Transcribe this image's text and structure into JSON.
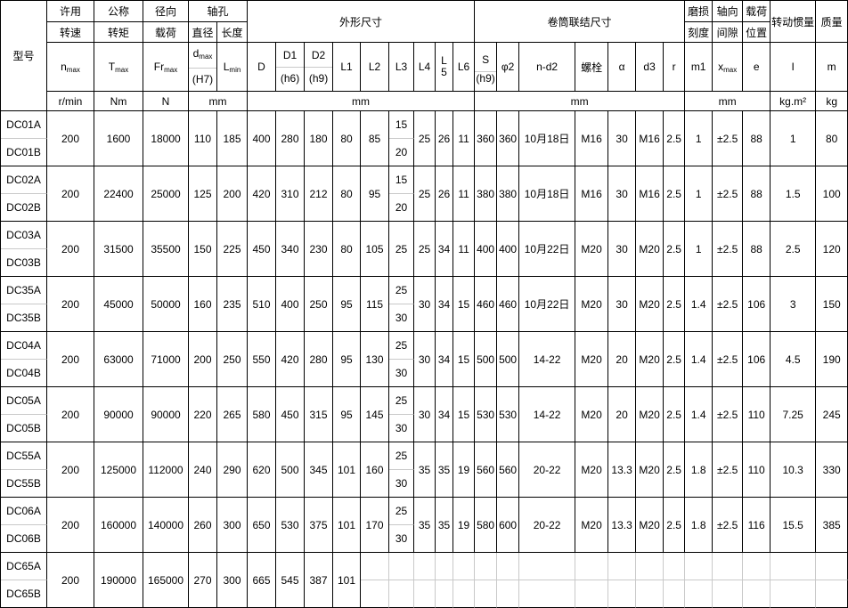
{
  "table": {
    "header": {
      "model": "型号",
      "groups": {
        "allow": [
          "许用",
          "转速"
        ],
        "torque": [
          "公称",
          "转矩"
        ],
        "radial": [
          "径向",
          "载荷"
        ],
        "hole": "轴孔",
        "hole_dia": "直径",
        "hole_len": "长度",
        "outline": "外形尺寸",
        "drum": "卷筒联结尺寸",
        "wear": [
          "磨损",
          "刻度"
        ],
        "axial": [
          "轴向",
          "间隙"
        ],
        "loadpos": [
          "载荷",
          "位置"
        ],
        "inertia": "转动惯量",
        "mass": "质量"
      },
      "symbols": {
        "n": {
          "b": "n",
          "s": "max"
        },
        "T": {
          "b": "T",
          "s": "max"
        },
        "Fr": {
          "b": "Fr",
          "s": "max"
        },
        "d": {
          "b": "d",
          "s": "max",
          "l2": "(H7)"
        },
        "Lmin": {
          "b": "L",
          "s": "min"
        },
        "D": "D",
        "D1": {
          "t": "D1",
          "l2": "(h6)"
        },
        "D2": {
          "t": "D2",
          "l2": "(h9)"
        },
        "L1": "L1",
        "L2": "L2",
        "L3": "L3",
        "L4": "L4",
        "L5": "L5",
        "L6": "L6",
        "S": {
          "t": "S",
          "l2": "(h9)"
        },
        "phi2": "φ2",
        "nd2": "n-d2",
        "bolt": "螺栓",
        "alpha": "α",
        "d3": "d3",
        "r": "r",
        "m1": "m1",
        "xmax": {
          "b": "x",
          "s": "max"
        },
        "e": "e",
        "I": "I",
        "m": "m"
      },
      "units": {
        "speed": "r/min",
        "torque": "Nm",
        "load": "N",
        "hole": "mm",
        "outline": "mm",
        "drum": "mm",
        "gap": "mm",
        "inertia": "kg.m²",
        "mass": "kg"
      }
    },
    "rows": [
      {
        "a": "DC01A",
        "b": "DC01B",
        "n": "200",
        "T": "1600",
        "Fr": "18000",
        "d": "110",
        "Lmin": "185",
        "D": "400",
        "D1": "280",
        "D2": "180",
        "L1": "80",
        "L2": "85",
        "L3a": "15",
        "L3b": "20",
        "L4": "25",
        "L5": "26",
        "L6": "11",
        "S": "360",
        "phi2": "360",
        "nd2": "10月18日",
        "bolt": "M16",
        "alpha": "30",
        "d3": "M16",
        "r": "2.5",
        "m1": "1",
        "xmax": "±2.5",
        "e": "88",
        "I": "1",
        "m": "80"
      },
      {
        "a": "DC02A",
        "b": "DC02B",
        "n": "200",
        "T": "22400",
        "Fr": "25000",
        "d": "125",
        "Lmin": "200",
        "D": "420",
        "D1": "310",
        "D2": "212",
        "L1": "80",
        "L2": "95",
        "L3a": "15",
        "L3b": "20",
        "L4": "25",
        "L5": "26",
        "L6": "11",
        "S": "380",
        "phi2": "380",
        "nd2": "10月18日",
        "bolt": "M16",
        "alpha": "30",
        "d3": "M16",
        "r": "2.5",
        "m1": "1",
        "xmax": "±2.5",
        "e": "88",
        "I": "1.5",
        "m": "100"
      },
      {
        "a": "DC03A",
        "b": "DC03B",
        "n": "200",
        "T": "31500",
        "Fr": "35500",
        "d": "150",
        "Lmin": "225",
        "D": "450",
        "D1": "340",
        "D2": "230",
        "L1": "80",
        "L2": "105",
        "L3": "25",
        "L4": "25",
        "L5": "34",
        "L6": "11",
        "S": "400",
        "phi2": "400",
        "nd2": "10月22日",
        "bolt": "M20",
        "alpha": "30",
        "d3": "M20",
        "r": "2.5",
        "m1": "1",
        "xmax": "±2.5",
        "e": "88",
        "I": "2.5",
        "m": "120"
      },
      {
        "a": "DC35A",
        "b": "DC35B",
        "n": "200",
        "T": "45000",
        "Fr": "50000",
        "d": "160",
        "Lmin": "235",
        "D": "510",
        "D1": "400",
        "D2": "250",
        "L1": "95",
        "L2": "115",
        "L3a": "25",
        "L3b": "30",
        "L4": "30",
        "L5": "34",
        "L6": "15",
        "S": "460",
        "phi2": "460",
        "nd2": "10月22日",
        "bolt": "M20",
        "alpha": "30",
        "d3": "M20",
        "r": "2.5",
        "m1": "1.4",
        "xmax": "±2.5",
        "e": "106",
        "I": "3",
        "m": "150"
      },
      {
        "a": "DC04A",
        "b": "DC04B",
        "n": "200",
        "T": "63000",
        "Fr": "71000",
        "d": "200",
        "Lmin": "250",
        "D": "550",
        "D1": "420",
        "D2": "280",
        "L1": "95",
        "L2": "130",
        "L3a": "25",
        "L3b": "30",
        "L4": "30",
        "L5": "34",
        "L6": "15",
        "S": "500",
        "phi2": "500",
        "nd2": "14-22",
        "bolt": "M20",
        "alpha": "20",
        "d3": "M20",
        "r": "2.5",
        "m1": "1.4",
        "xmax": "±2.5",
        "e": "106",
        "I": "4.5",
        "m": "190"
      },
      {
        "a": "DC05A",
        "b": "DC05B",
        "n": "200",
        "T": "90000",
        "Fr": "90000",
        "d": "220",
        "Lmin": "265",
        "D": "580",
        "D1": "450",
        "D2": "315",
        "L1": "95",
        "L2": "145",
        "L3a": "25",
        "L3b": "30",
        "L4": "30",
        "L5": "34",
        "L6": "15",
        "S": "530",
        "phi2": "530",
        "nd2": "14-22",
        "bolt": "M20",
        "alpha": "20",
        "d3": "M20",
        "r": "2.5",
        "m1": "1.4",
        "xmax": "±2.5",
        "e": "110",
        "I": "7.25",
        "m": "245"
      },
      {
        "a": "DC55A",
        "b": "DC55B",
        "n": "200",
        "T": "125000",
        "Fr": "112000",
        "d": "240",
        "Lmin": "290",
        "D": "620",
        "D1": "500",
        "D2": "345",
        "L1": "101",
        "L2": "160",
        "L3a": "25",
        "L3b": "30",
        "L4": "35",
        "L5": "35",
        "L6": "19",
        "S": "560",
        "phi2": "560",
        "nd2": "20-22",
        "bolt": "M20",
        "alpha": "13.3",
        "d3": "M20",
        "r": "2.5",
        "m1": "1.8",
        "xmax": "±2.5",
        "e": "110",
        "I": "10.3",
        "m": "330"
      },
      {
        "a": "DC06A",
        "b": "DC06B",
        "n": "200",
        "T": "160000",
        "Fr": "140000",
        "d": "260",
        "Lmin": "300",
        "D": "650",
        "D1": "530",
        "D2": "375",
        "L1": "101",
        "L2": "170",
        "L3a": "25",
        "L3b": "30",
        "L4": "35",
        "L5": "35",
        "L6": "19",
        "S": "580",
        "phi2": "600",
        "nd2": "20-22",
        "bolt": "M20",
        "alpha": "13.3",
        "d3": "M20",
        "r": "2.5",
        "m1": "1.8",
        "xmax": "±2.5",
        "e": "116",
        "I": "15.5",
        "m": "385"
      },
      {
        "a": "DC65A",
        "b": "DC65B",
        "ghost": true,
        "n": "200",
        "T": "190000",
        "Fr": "165000",
        "d": "270",
        "Lmin": "300",
        "D": "665",
        "D1": "545",
        "D2": "387",
        "L1": "101"
      }
    ]
  }
}
